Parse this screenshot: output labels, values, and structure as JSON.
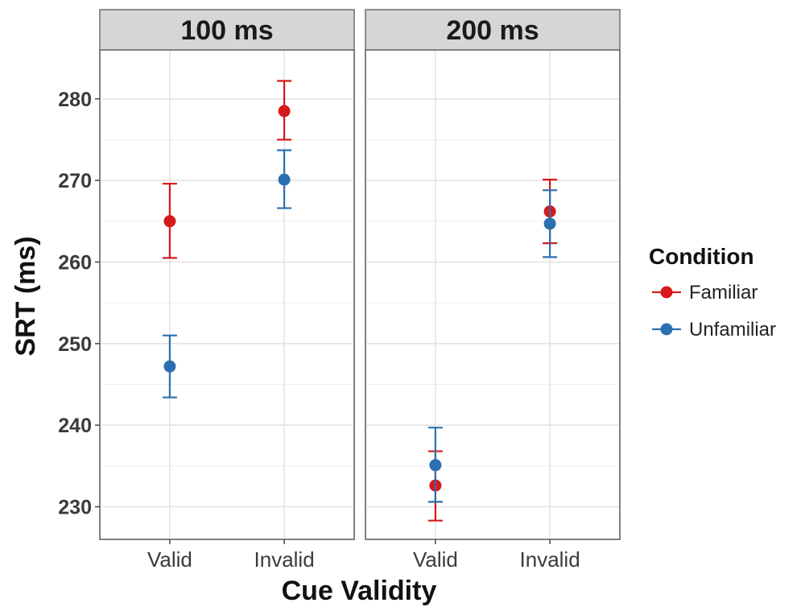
{
  "chart_data": {
    "type": "scatter",
    "xlabel": "Cue Validity",
    "ylabel": "SRT (ms)",
    "ylim": [
      226,
      286
    ],
    "yticks": [
      230,
      240,
      250,
      260,
      270,
      280
    ],
    "categories": [
      "Valid",
      "Invalid"
    ],
    "facets": [
      "100 ms",
      "200 ms"
    ],
    "legend": {
      "title": "Condition",
      "position": "right",
      "entries": [
        "Familiar",
        "Unfamiliar"
      ]
    },
    "colors": {
      "Familiar": "#d7191c",
      "Unfamiliar": "#2c6fb0"
    },
    "series": [
      {
        "name": "Familiar",
        "points": [
          {
            "facet": "100 ms",
            "x": "Valid",
            "y": 265.0,
            "ymin": 260.5,
            "ymax": 269.6
          },
          {
            "facet": "100 ms",
            "x": "Invalid",
            "y": 278.5,
            "ymin": 275.0,
            "ymax": 282.2
          },
          {
            "facet": "200 ms",
            "x": "Valid",
            "y": 232.6,
            "ymin": 228.3,
            "ymax": 236.8
          },
          {
            "facet": "200 ms",
            "x": "Invalid",
            "y": 266.2,
            "ymin": 262.3,
            "ymax": 270.1
          }
        ]
      },
      {
        "name": "Unfamiliar",
        "points": [
          {
            "facet": "100 ms",
            "x": "Valid",
            "y": 247.2,
            "ymin": 243.4,
            "ymax": 251.0
          },
          {
            "facet": "100 ms",
            "x": "Invalid",
            "y": 270.1,
            "ymin": 266.6,
            "ymax": 273.7
          },
          {
            "facet": "200 ms",
            "x": "Valid",
            "y": 235.1,
            "ymin": 230.6,
            "ymax": 239.7
          },
          {
            "facet": "200 ms",
            "x": "Invalid",
            "y": 264.7,
            "ymin": 260.6,
            "ymax": 268.8
          }
        ]
      }
    ]
  }
}
